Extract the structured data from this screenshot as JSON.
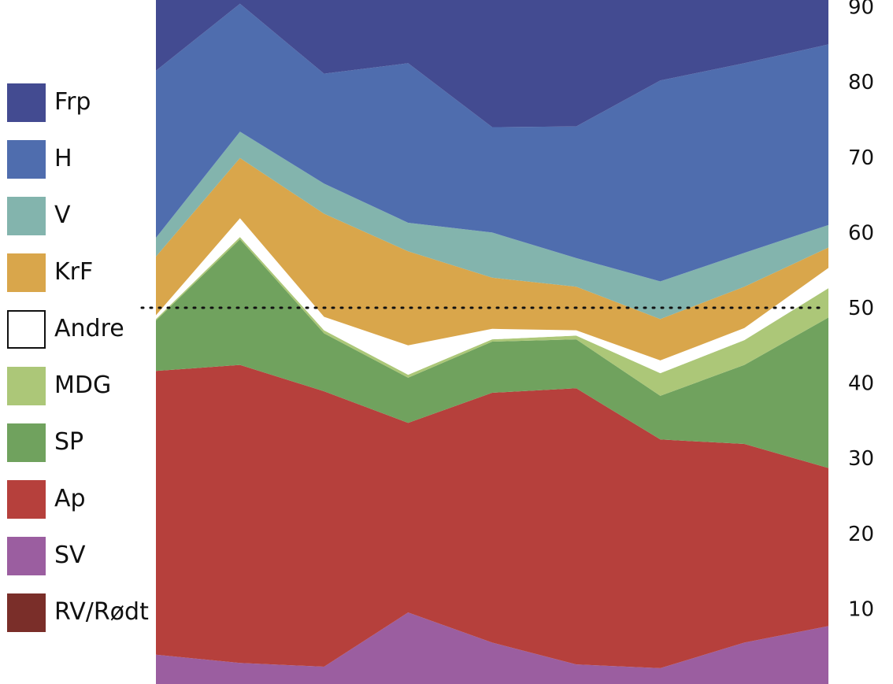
{
  "chart_data": {
    "type": "area",
    "stacked": true,
    "x": [
      1,
      2,
      3,
      4,
      5,
      6,
      7,
      8,
      9
    ],
    "ylim": [
      0,
      101
    ],
    "yticks": [
      10,
      20,
      30,
      40,
      50,
      60,
      70,
      80,
      90
    ],
    "reference_line": 50,
    "legend_position": "left",
    "series": [
      {
        "name": "SV",
        "color": "#9b5ea0",
        "values": [
          3.9,
          2.8,
          2.3,
          9.5,
          5.5,
          2.6,
          2.1,
          5.5,
          7.7
        ]
      },
      {
        "name": "Ap",
        "color": "#b6403c",
        "values": [
          37.7,
          39.6,
          36.6,
          25.2,
          33.2,
          36.7,
          30.4,
          26.4,
          21.0
        ]
      },
      {
        "name": "SP",
        "color": "#70a25e",
        "values": [
          6.7,
          16.7,
          7.7,
          6.0,
          6.8,
          6.5,
          5.8,
          10.5,
          20.0
        ]
      },
      {
        "name": "MDG",
        "color": "#acc778",
        "values": [
          0.2,
          0.3,
          0.4,
          0.4,
          0.3,
          0.5,
          3.0,
          3.3,
          3.9
        ]
      },
      {
        "name": "Andre",
        "color": "#ffffff",
        "values": [
          0.5,
          2.5,
          1.8,
          3.9,
          1.4,
          0.7,
          1.7,
          1.6,
          2.7
        ]
      },
      {
        "name": "KrF",
        "color": "#d9a64b",
        "values": [
          7.8,
          8.0,
          13.7,
          12.5,
          6.8,
          5.8,
          5.5,
          5.5,
          2.7
        ]
      },
      {
        "name": "V",
        "color": "#83b4ad",
        "values": [
          2.5,
          3.5,
          4.0,
          3.8,
          6.0,
          3.8,
          5.0,
          4.5,
          3.0
        ]
      },
      {
        "name": "H",
        "color": "#4f6dae",
        "values": [
          22.2,
          17.0,
          14.6,
          21.2,
          14.0,
          17.5,
          26.7,
          25.2,
          24.0
        ]
      },
      {
        "name": "Frp",
        "color": "#434b91",
        "values": [
          19.5,
          10.6,
          20.1,
          18.5,
          27.0,
          27.9,
          19.8,
          18.5,
          15.0
        ]
      },
      {
        "name": "RV/Rødt",
        "color": "#7a2e29",
        "values": [
          0,
          0,
          0,
          0,
          0,
          0,
          0,
          0,
          0
        ]
      }
    ],
    "legend_order": [
      "Frp",
      "H",
      "V",
      "KrF",
      "Andre",
      "MDG",
      "SP",
      "Ap",
      "SV",
      "RV/Rødt"
    ]
  }
}
